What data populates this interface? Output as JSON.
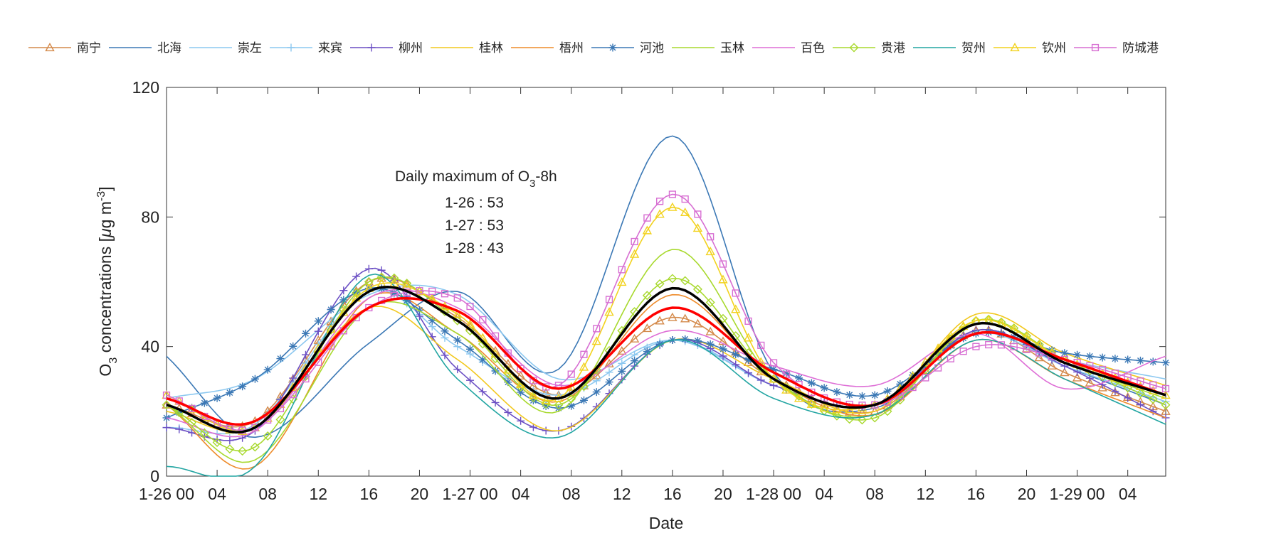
{
  "chart_data": {
    "type": "line",
    "xlabel": "Date",
    "ylabel": {
      "prefix": "O",
      "sub": "3",
      "middle": " concentrations [",
      "mu": "μ",
      "unit": "g m",
      "sup": "-3",
      "suffix": "]"
    },
    "xlim": [
      0,
      79
    ],
    "ylim": [
      0,
      120
    ],
    "yticks": [
      0,
      40,
      80,
      120
    ],
    "xticks": [
      {
        "x": 0,
        "label": "1-26 00"
      },
      {
        "x": 4,
        "label": "04"
      },
      {
        "x": 8,
        "label": "08"
      },
      {
        "x": 12,
        "label": "12"
      },
      {
        "x": 16,
        "label": "16"
      },
      {
        "x": 20,
        "label": "20"
      },
      {
        "x": 24,
        "label": "1-27 00"
      },
      {
        "x": 28,
        "label": "04"
      },
      {
        "x": 32,
        "label": "08"
      },
      {
        "x": 36,
        "label": "12"
      },
      {
        "x": 40,
        "label": "16"
      },
      {
        "x": 44,
        "label": "20"
      },
      {
        "x": 48,
        "label": "1-28 00"
      },
      {
        "x": 52,
        "label": "04"
      },
      {
        "x": 56,
        "label": "08"
      },
      {
        "x": 60,
        "label": "12"
      },
      {
        "x": 64,
        "label": "16"
      },
      {
        "x": 68,
        "label": "20"
      },
      {
        "x": 72,
        "label": "1-29 00"
      },
      {
        "x": 76,
        "label": "04"
      }
    ],
    "annotation": {
      "title_prefix": "Daily maximum of O",
      "title_sub": "3",
      "title_suffix": "-8h",
      "lines": [
        "1-26 : 53",
        "1-27 : 53",
        "1-28 : 43"
      ]
    },
    "keypoints_x": [
      0,
      7,
      16,
      23,
      31,
      40,
      48,
      56,
      64,
      71,
      79
    ],
    "series": [
      {
        "name": "南宁",
        "color": "#D48A4B",
        "marker": "triangle",
        "values": [
          22,
          17,
          60,
          49,
          25,
          49,
          30,
          20,
          45,
          32,
          20
        ]
      },
      {
        "name": "北海",
        "color": "#3B78B5",
        "marker": "none",
        "values": [
          37,
          12,
          41,
          57,
          33,
          105,
          32,
          21,
          45,
          34,
          22
        ]
      },
      {
        "name": "崇左",
        "color": "#8CC8F0",
        "marker": "none",
        "values": [
          24,
          30,
          56,
          56,
          30,
          42,
          28,
          22,
          44,
          36,
          30
        ]
      },
      {
        "name": "来宾",
        "color": "#8CC8F0",
        "marker": "plus",
        "values": [
          15,
          16,
          57,
          40,
          25,
          42,
          28,
          22,
          44,
          34,
          23
        ]
      },
      {
        "name": "柳州",
        "color": "#6B4FC4",
        "marker": "plus",
        "values": [
          15,
          14,
          64,
          33,
          14,
          42,
          28,
          22,
          45,
          34,
          18
        ]
      },
      {
        "name": "桂林",
        "color": "#F2C81E",
        "marker": "none",
        "values": [
          20,
          15,
          52,
          36,
          14,
          42,
          30,
          20,
          50,
          38,
          28
        ]
      },
      {
        "name": "梧州",
        "color": "#EE8B2A",
        "marker": "none",
        "values": [
          22,
          3,
          55,
          44,
          23,
          56,
          30,
          19,
          42,
          30,
          18
        ]
      },
      {
        "name": "河池",
        "color": "#3B78B5",
        "marker": "star",
        "values": [
          18,
          30,
          58,
          42,
          21,
          42,
          33,
          25,
          44,
          38,
          35
        ]
      },
      {
        "name": "玉林",
        "color": "#A8D92E",
        "marker": "none",
        "values": [
          22,
          5,
          52,
          44,
          20,
          70,
          30,
          19,
          47,
          35,
          24
        ]
      },
      {
        "name": "百色",
        "color": "#DE6ED6",
        "marker": "none",
        "values": [
          18,
          14,
          55,
          52,
          28,
          45,
          34,
          28,
          44,
          27,
          37
        ]
      },
      {
        "name": "贵港",
        "color": "#A8D92E",
        "marker": "diamond",
        "values": [
          22,
          9,
          60,
          48,
          22,
          61,
          30,
          18,
          48,
          36,
          22
        ]
      },
      {
        "name": "贺州",
        "color": "#22A5A2",
        "marker": "none",
        "values": [
          3,
          3,
          62,
          30,
          12,
          42,
          24,
          19,
          42,
          30,
          16
        ]
      },
      {
        "name": "钦州",
        "color": "#F2D21E",
        "marker": "triangle",
        "values": [
          25,
          15,
          58,
          50,
          24,
          83,
          30,
          22,
          48,
          36,
          25
        ]
      },
      {
        "name": "防城港",
        "color": "#D76ED2",
        "marker": "square",
        "values": [
          25,
          15,
          52,
          55,
          28,
          87,
          35,
          22,
          40,
          36,
          27
        ]
      },
      {
        "name": "",
        "color": "#FF0000",
        "marker": "none",
        "width": 3.5,
        "values": [
          24,
          17,
          52,
          51,
          27,
          52,
          32,
          22,
          44,
          36,
          25
        ]
      },
      {
        "name": "",
        "color": "#000000",
        "marker": "none",
        "width": 3.5,
        "values": [
          22,
          15,
          57,
          48,
          24,
          58,
          30,
          22,
          47,
          35,
          25
        ]
      }
    ]
  }
}
